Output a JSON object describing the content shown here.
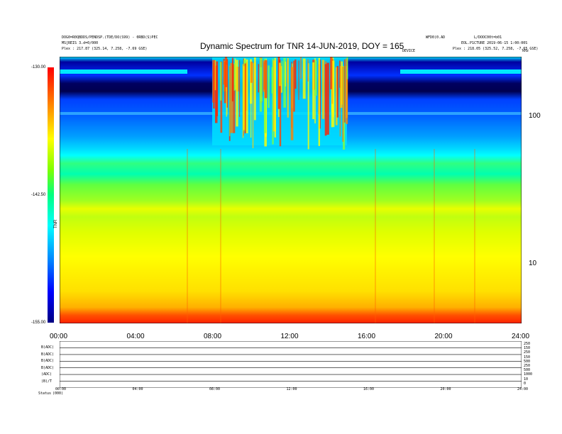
{
  "header": {
    "title": "Dynamic Spectrum for TNR 14-JUN-2019, DOY = 165",
    "left_line1": "DOG0=R0QBDDS/PENDSP.(TDE/DO(S99) - 0RBD(S)PEC",
    "left_line2": "MS[REIS 3.d=0/000",
    "left_line3": "Plex : 217.87 (325.14, 7.258, -7.69 GSE)",
    "center_label": "WFD0(0.AD",
    "right_line1": "L/DOOC00t=b01",
    "right_line2": "EOL.P1CTURE  2019-06-15 1:00:00S",
    "right_line3": "Plex : 218.05 (325.52, 7.258, -7.65 GSE)",
    "mid_label": "DEVICE",
    "khz_label": "kHz"
  },
  "colorbar": {
    "top_label": "-130.00",
    "mid_label": "-142.50",
    "bottom_label": "-155.00",
    "axis_label": "TNR"
  },
  "chart_data": {
    "type": "heatmap",
    "title": "Dynamic Spectrum for TNR 14-JUN-2019, DOY = 165",
    "x_ticks": [
      "00:00",
      "04:00",
      "08:00",
      "12:00",
      "16:00",
      "20:00",
      "24:00"
    ],
    "x_range_hours": [
      0,
      24
    ],
    "y_scale": "log",
    "y_unit": "kHz",
    "y_ticks": [
      100,
      10
    ],
    "y_range": [
      4,
      250
    ],
    "colorbar_range": [
      -155.0,
      -130.0
    ],
    "colors": [
      "#000080",
      "#0000ff",
      "#0080ff",
      "#00ffff",
      "#00ff80",
      "#80ff00",
      "#ffff00",
      "#ff8000",
      "#ff0000"
    ]
  },
  "strip": {
    "row_labels": [
      "B(ADC)",
      "B(ADC)",
      "B(ADC)",
      "B(ADC)",
      "(ADC)",
      "(B)/T"
    ],
    "time_ticks": [
      "00:00",
      "04:00",
      "08:00",
      "12:00",
      "16:00",
      "20:00",
      "24:00"
    ],
    "right_values": [
      "250",
      "150",
      "250",
      "150",
      "500",
      "250",
      "500",
      "1000",
      "10",
      "0"
    ],
    "footer_label": "Status",
    "footer_value": "(000)"
  }
}
